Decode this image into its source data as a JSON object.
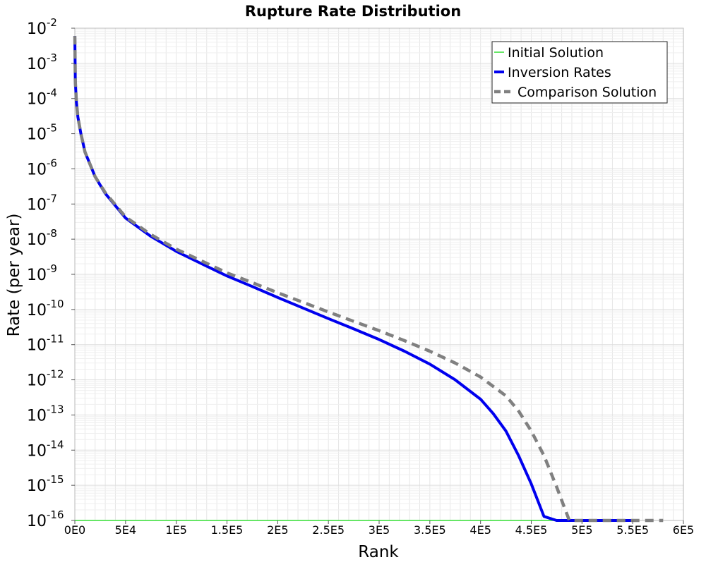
{
  "chart_data": {
    "type": "line",
    "title": "Rupture Rate Distribution",
    "xlabel": "Rank",
    "ylabel": "Rate (per year)",
    "xscale": "linear",
    "yscale": "log",
    "xlim": [
      0,
      600000
    ],
    "ylim": [
      1e-16,
      0.01
    ],
    "grid": true,
    "legend_position": "top-right",
    "x_ticks": [
      {
        "value": 0,
        "label": "0E0"
      },
      {
        "value": 50000,
        "label": "5E4"
      },
      {
        "value": 100000,
        "label": "1E5"
      },
      {
        "value": 150000,
        "label": "1.5E5"
      },
      {
        "value": 200000,
        "label": "2E5"
      },
      {
        "value": 250000,
        "label": "2.5E5"
      },
      {
        "value": 300000,
        "label": "3E5"
      },
      {
        "value": 350000,
        "label": "3.5E5"
      },
      {
        "value": 400000,
        "label": "4E5"
      },
      {
        "value": 450000,
        "label": "4.5E5"
      },
      {
        "value": 500000,
        "label": "5E5"
      },
      {
        "value": 550000,
        "label": "5.5E5"
      },
      {
        "value": 600000,
        "label": "6E5"
      }
    ],
    "y_ticks": [
      {
        "exp": -2,
        "base": "10",
        "label": "-2"
      },
      {
        "exp": -3,
        "base": "10",
        "label": "-3"
      },
      {
        "exp": -4,
        "base": "10",
        "label": "-4"
      },
      {
        "exp": -5,
        "base": "10",
        "label": "-5"
      },
      {
        "exp": -6,
        "base": "10",
        "label": "-6"
      },
      {
        "exp": -7,
        "base": "10",
        "label": "-7"
      },
      {
        "exp": -8,
        "base": "10",
        "label": "-8"
      },
      {
        "exp": -9,
        "base": "10",
        "label": "-9"
      },
      {
        "exp": -10,
        "base": "10",
        "label": "-10"
      },
      {
        "exp": -11,
        "base": "10",
        "label": "-11"
      },
      {
        "exp": -12,
        "base": "10",
        "label": "-12"
      },
      {
        "exp": -13,
        "base": "10",
        "label": "-13"
      },
      {
        "exp": -14,
        "base": "10",
        "label": "-14"
      },
      {
        "exp": -15,
        "base": "10",
        "label": "-15"
      },
      {
        "exp": -16,
        "base": "10",
        "label": "-16"
      }
    ],
    "series": [
      {
        "name": "Initial Solution",
        "color": "#33dd33",
        "style": "solid",
        "x": [
          0,
          550000
        ],
        "y": [
          1e-16,
          1e-16
        ]
      },
      {
        "name": "Inversion Rates",
        "color": "#0000ee",
        "style": "solid",
        "x": [
          0,
          500,
          1500,
          3000,
          6000,
          10000,
          20000,
          30000,
          50000,
          75000,
          100000,
          125000,
          150000,
          175000,
          200000,
          225000,
          250000,
          275000,
          300000,
          325000,
          350000,
          375000,
          400000,
          412500,
          425000,
          437500,
          450000,
          462500,
          475000,
          487500,
          495000,
          520000,
          550000
        ],
        "y": [
          0.006,
          0.0003,
          8e-05,
          3e-05,
          1e-05,
          3e-06,
          6e-07,
          2e-07,
          4e-08,
          1.2e-08,
          4.5e-09,
          2e-09,
          9e-10,
          4.5e-10,
          2.2e-10,
          1.1e-10,
          5.5e-11,
          2.8e-11,
          1.4e-11,
          6.5e-12,
          2.8e-12,
          1e-12,
          2.8e-13,
          1.1e-13,
          3.5e-14,
          7e-15,
          1.1e-15,
          1.3e-16,
          1.6e-17,
          2e-18,
          1e-16,
          1e-16,
          1e-16
        ]
      },
      {
        "name": "Comparison Solution",
        "color": "#808080",
        "style": "dashed",
        "x": [
          0,
          500,
          1500,
          3000,
          6000,
          10000,
          20000,
          30000,
          50000,
          75000,
          100000,
          125000,
          150000,
          175000,
          200000,
          225000,
          250000,
          275000,
          300000,
          325000,
          350000,
          375000,
          400000,
          425000,
          437500,
          450000,
          462500,
          475000,
          487500,
          500000,
          512500,
          520000,
          550000,
          580000
        ],
        "y": [
          0.006,
          0.0003,
          8e-05,
          3e-05,
          1e-05,
          3e-06,
          6e-07,
          2.1e-07,
          4.3e-08,
          1.35e-08,
          5.2e-09,
          2.4e-09,
          1.1e-09,
          5.8e-10,
          3e-10,
          1.6e-10,
          8.5e-11,
          4.6e-11,
          2.5e-11,
          1.3e-11,
          6.5e-12,
          3e-12,
          1.2e-12,
          3.5e-13,
          1.3e-13,
          3.5e-14,
          7e-15,
          9e-16,
          1e-16,
          1e-17,
          1e-18,
          1e-16,
          1e-16,
          1e-16
        ]
      }
    ]
  }
}
